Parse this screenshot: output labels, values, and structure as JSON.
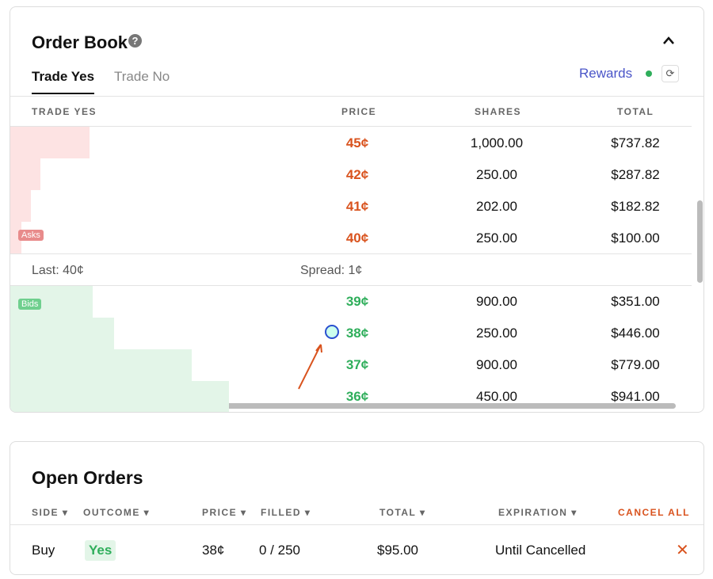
{
  "order_book": {
    "title": "Order Book",
    "tabs": [
      "Trade Yes",
      "Trade No"
    ],
    "rewards": "Rewards",
    "columns": [
      "TRADE YES",
      "PRICE",
      "SHARES",
      "TOTAL"
    ],
    "asks_label": "Asks",
    "bids_label": "Bids",
    "asks": [
      [
        "45¢",
        "1,000.00",
        "$737.82"
      ],
      [
        "42¢",
        "250.00",
        "$287.82"
      ],
      [
        "41¢",
        "202.00",
        "$182.82"
      ],
      [
        "40¢",
        "250.00",
        "$100.00"
      ]
    ],
    "last": "Last: 40¢",
    "spread": "Spread: 1¢",
    "bids": [
      [
        "39¢",
        "900.00",
        "$351.00"
      ],
      [
        "38¢",
        "250.00",
        "$446.00"
      ],
      [
        "37¢",
        "900.00",
        "$779.00"
      ],
      [
        "36¢",
        "450.00",
        "$941.00"
      ]
    ]
  },
  "open_orders": {
    "title": "Open Orders",
    "columns": [
      "SIDE",
      "OUTCOME",
      "PRICE",
      "FILLED",
      "TOTAL",
      "EXPIRATION"
    ],
    "cancel_all": "CANCEL ALL",
    "rows": [
      [
        "Buy",
        "Yes",
        "38¢",
        "0 / 250",
        "$95.00",
        "Until Cancelled"
      ]
    ]
  }
}
